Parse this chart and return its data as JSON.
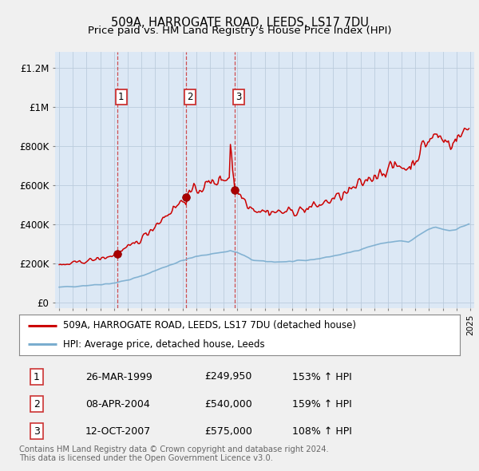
{
  "title": "509A, HARROGATE ROAD, LEEDS, LS17 7DU",
  "subtitle": "Price paid vs. HM Land Registry’s House Price Index (HPI)",
  "ylabel_ticks": [
    "£0",
    "£200K",
    "£400K",
    "£600K",
    "£800K",
    "£1M",
    "£1.2M"
  ],
  "ytick_values": [
    0,
    200000,
    400000,
    600000,
    800000,
    1000000,
    1200000
  ],
  "ylim": [
    -30000,
    1280000
  ],
  "xlim_start": 1994.7,
  "xlim_end": 2025.3,
  "sales": [
    {
      "label": "1",
      "year": 1999.23,
      "price": 249950,
      "date": "26-MAR-1999",
      "pct": "153%",
      "dir": "↑"
    },
    {
      "label": "2",
      "year": 2004.27,
      "price": 540000,
      "date": "08-APR-2004",
      "pct": "159%",
      "dir": "↑"
    },
    {
      "label": "3",
      "year": 2007.79,
      "price": 575000,
      "date": "12-OCT-2007",
      "pct": "108%",
      "dir": "↑"
    }
  ],
  "vline_color": "#cc3333",
  "red_line_color": "#cc0000",
  "blue_line_color": "#7aadcf",
  "plot_bg_color": "#dce8f5",
  "background_color": "#f0f0f0",
  "grid_color": "#bbccdd",
  "legend_entry1": "509A, HARROGATE ROAD, LEEDS, LS17 7DU (detached house)",
  "legend_entry2": "HPI: Average price, detached house, Leeds",
  "table_rows": [
    [
      "1",
      "26-MAR-1999",
      "£249,950",
      "153% ↑ HPI"
    ],
    [
      "2",
      "08-APR-2004",
      "£540,000",
      "159% ↑ HPI"
    ],
    [
      "3",
      "12-OCT-2007",
      "£575,000",
      "108% ↑ HPI"
    ]
  ],
  "footnote": "Contains HM Land Registry data © Crown copyright and database right 2024.\nThis data is licensed under the Open Government Licence v3.0."
}
